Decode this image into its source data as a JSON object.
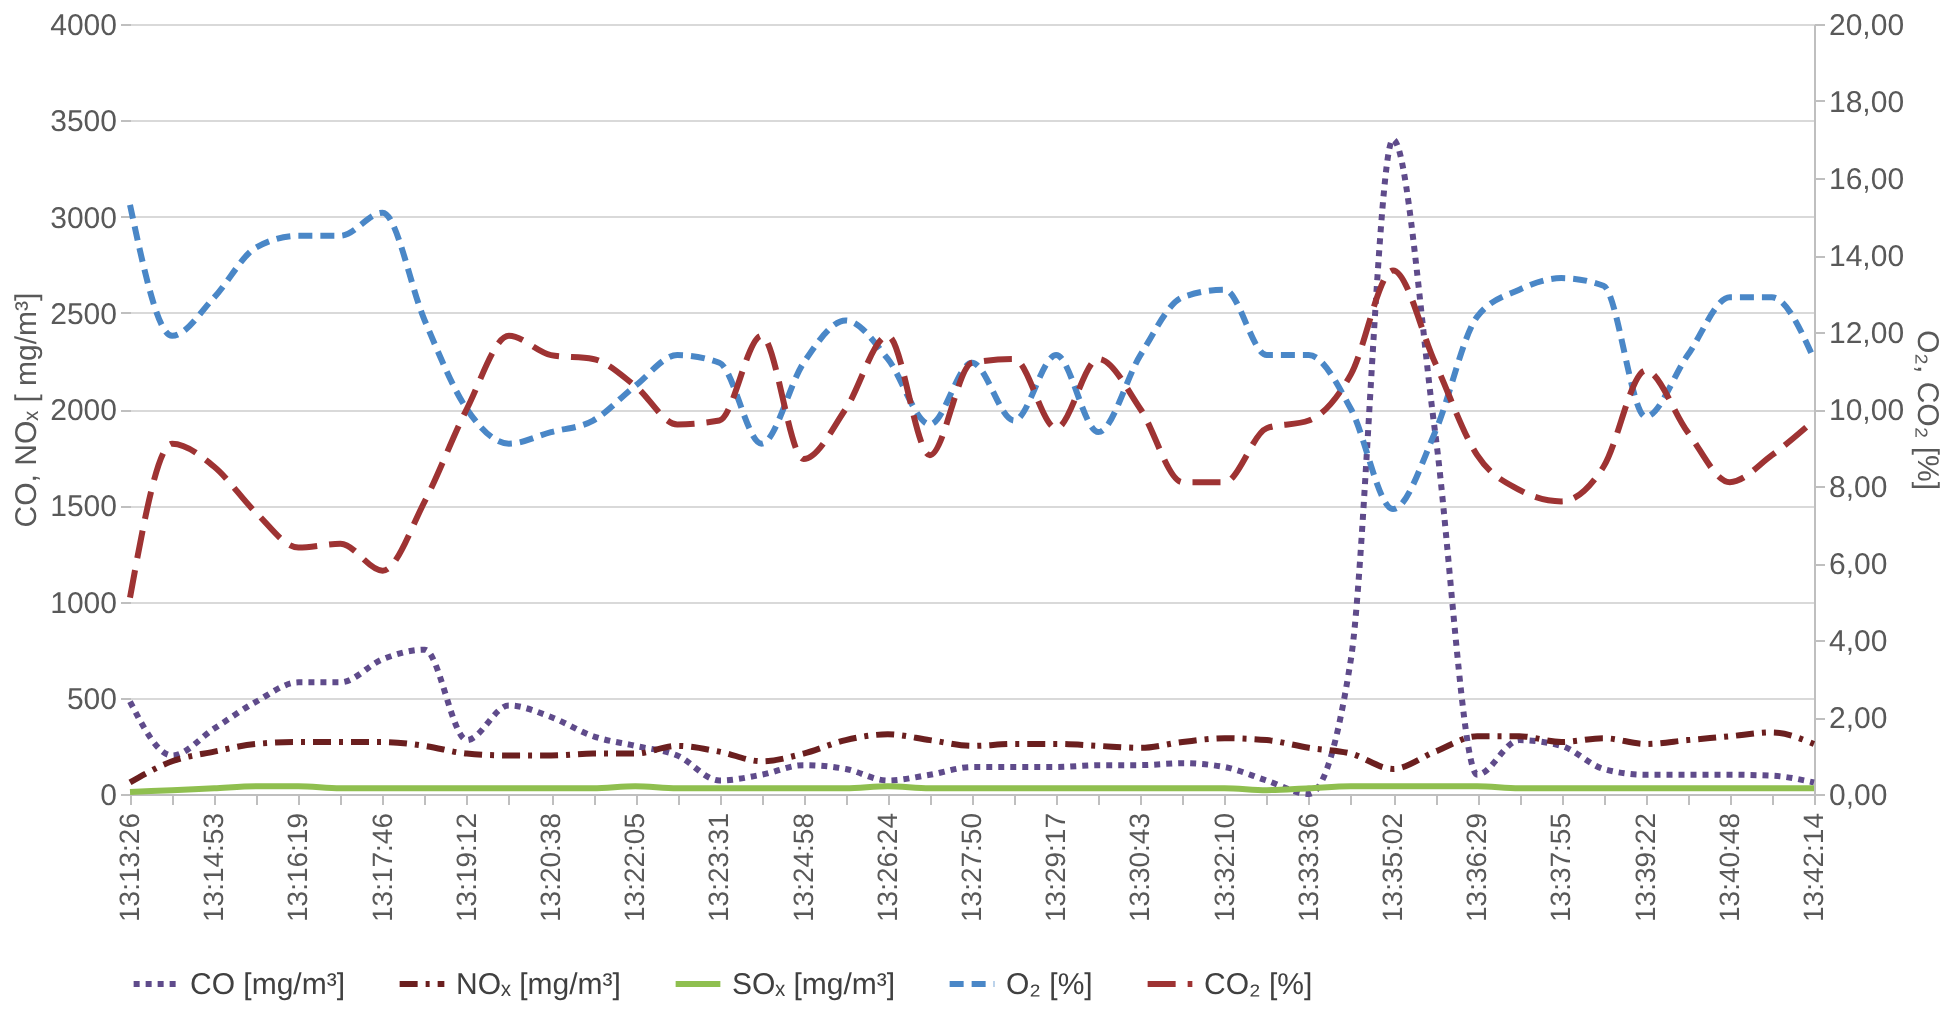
{
  "chart_data": {
    "type": "line",
    "ylabel": "CO, NOₓ [ mg/m³]",
    "y2label": "O₂, CO₂ [%]",
    "categories": [
      "13:13:26",
      null,
      "13:14:53",
      null,
      "13:16:19",
      null,
      "13:17:46",
      null,
      "13:19:12",
      null,
      "13:20:38",
      null,
      "13:22:05",
      null,
      "13:23:31",
      null,
      "13:24:58",
      null,
      "13:26:24",
      null,
      "13:27:50",
      null,
      "13:29:17",
      null,
      "13:30:43",
      null,
      "13:32:10",
      null,
      "13:33:36",
      null,
      "13:35:02",
      null,
      "13:36:29",
      null,
      "13:37:55",
      null,
      "13:39:22",
      null,
      "13:40:48",
      null,
      "13:42:14"
    ],
    "ylim": [
      0,
      4000
    ],
    "yticks": [
      0,
      500,
      1000,
      1500,
      2000,
      2500,
      3000,
      3500,
      4000
    ],
    "y2lim": [
      0,
      20
    ],
    "y2ticks": [
      {
        "value": 0,
        "label": "0,00"
      },
      {
        "value": 2,
        "label": "2,00"
      },
      {
        "value": 4,
        "label": "4,00"
      },
      {
        "value": 6,
        "label": "6,00"
      },
      {
        "value": 8,
        "label": "8,00"
      },
      {
        "value": 10,
        "label": "10,00"
      },
      {
        "value": 12,
        "label": "12,00"
      },
      {
        "value": 14,
        "label": "14,00"
      },
      {
        "value": 16,
        "label": "16,00"
      },
      {
        "value": 18,
        "label": "18,00"
      },
      {
        "value": 20,
        "label": "20,00"
      }
    ],
    "grid": "y",
    "legend": "bottom",
    "marker": "none",
    "series": [
      {
        "name": "CO [mg/m³]",
        "color": "#5f4b8b",
        "line_style": "dotted",
        "values": [
          480,
          200,
          340,
          480,
          580,
          580,
          700,
          750,
          280,
          460,
          400,
          300,
          250,
          200,
          70,
          100,
          150,
          130,
          70,
          100,
          140,
          140,
          140,
          150,
          150,
          160,
          140,
          70,
          0,
          700,
          3400,
          1880,
          100,
          280,
          250,
          130,
          100,
          100,
          100,
          95,
          60
        ]
      },
      {
        "name": "NOₓ [mg/m³]",
        "color": "#6b1f1f",
        "line_style": "dashdot",
        "values": [
          60,
          170,
          220,
          260,
          270,
          270,
          270,
          250,
          210,
          200,
          200,
          210,
          210,
          250,
          220,
          170,
          210,
          280,
          310,
          280,
          250,
          260,
          260,
          250,
          240,
          270,
          290,
          280,
          240,
          210,
          130,
          220,
          300,
          300,
          270,
          290,
          260,
          280,
          300,
          320,
          260
        ]
      },
      {
        "name": "SOₓ [mg/m³]",
        "color": "#8fbf4f",
        "line_style": "solid",
        "values": [
          10,
          20,
          30,
          40,
          40,
          30,
          30,
          30,
          30,
          30,
          30,
          30,
          40,
          30,
          30,
          30,
          30,
          30,
          40,
          30,
          30,
          30,
          30,
          30,
          30,
          30,
          30,
          20,
          30,
          40,
          40,
          40,
          40,
          30,
          30,
          30,
          30,
          30,
          30,
          30,
          30
        ]
      },
      {
        "name": "O₂ [%]",
        "color": "#4a87c7",
        "line_style": "dashed",
        "axis": "y2",
        "values": [
          15.3,
          11.9,
          12.9,
          14.2,
          14.5,
          14.5,
          15.1,
          12.3,
          10.0,
          9.1,
          9.4,
          9.7,
          10.6,
          11.4,
          11.2,
          9.1,
          11.2,
          12.3,
          11.3,
          9.6,
          11.2,
          9.7,
          11.4,
          9.4,
          11.4,
          12.9,
          13.1,
          11.4,
          11.4,
          10.0,
          7.4,
          9.4,
          12.4,
          13.1,
          13.4,
          13.2,
          9.8,
          11.4,
          12.9,
          12.9,
          11.3
        ]
      },
      {
        "name": "CO₂ [%]",
        "color": "#9e3333",
        "line_style": "longdash",
        "axis": "y2",
        "values": [
          5.1,
          9.1,
          8.5,
          7.3,
          6.4,
          6.5,
          5.8,
          7.6,
          10.0,
          11.9,
          11.4,
          11.3,
          10.6,
          9.6,
          9.7,
          11.9,
          8.7,
          10.0,
          11.9,
          8.8,
          11.2,
          11.3,
          9.5,
          11.3,
          10.0,
          8.1,
          8.1,
          9.5,
          9.7,
          10.9,
          13.6,
          11.2,
          8.8,
          7.9,
          7.6,
          8.5,
          11.0,
          9.4,
          8.1,
          8.8,
          9.7
        ]
      }
    ]
  }
}
